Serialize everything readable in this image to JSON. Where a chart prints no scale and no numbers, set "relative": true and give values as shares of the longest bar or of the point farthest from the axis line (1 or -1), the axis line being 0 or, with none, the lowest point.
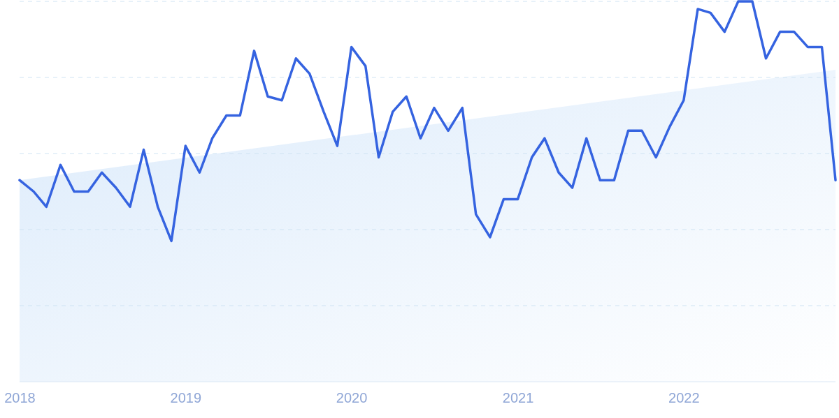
{
  "chart_data": {
    "type": "line",
    "relative": true,
    "tick_labels": "x",
    "x": [
      "2018-01",
      "2018-02",
      "2018-03",
      "2018-04",
      "2018-05",
      "2018-06",
      "2018-07",
      "2018-08",
      "2018-09",
      "2018-10",
      "2018-11",
      "2018-12",
      "2019-01",
      "2019-02",
      "2019-03",
      "2019-04",
      "2019-05",
      "2019-06",
      "2019-07",
      "2019-08",
      "2019-09",
      "2019-10",
      "2019-11",
      "2019-12",
      "2020-01",
      "2020-02",
      "2020-03",
      "2020-04",
      "2020-05",
      "2020-06",
      "2020-07",
      "2020-08",
      "2020-09",
      "2020-10",
      "2020-11",
      "2020-12",
      "2021-01",
      "2021-02",
      "2021-03",
      "2021-04",
      "2021-05",
      "2021-06",
      "2021-07",
      "2021-08",
      "2021-09",
      "2021-10",
      "2021-11",
      "2021-12",
      "2022-01",
      "2022-02",
      "2022-03",
      "2022-04",
      "2022-05",
      "2022-06",
      "2022-07",
      "2022-08",
      "2022-09",
      "2022-10",
      "2022-11",
      "2022-12"
    ],
    "xlim": [
      "2018-01",
      "2022-12"
    ],
    "xticks": [
      "2018",
      "2019",
      "2020",
      "2021",
      "2022"
    ],
    "series": [
      {
        "type": "area",
        "color": "#dcebfb",
        "x": [
          "2018-01",
          "2022-12"
        ],
        "values": [
          0.53,
          0.82
        ]
      },
      {
        "color": "#3563e0",
        "values": [
          0.53,
          0.5,
          0.46,
          0.57,
          0.5,
          0.5,
          0.55,
          0.51,
          0.46,
          0.61,
          0.46,
          0.37,
          0.62,
          0.55,
          0.64,
          0.7,
          0.7,
          0.87,
          0.75,
          0.74,
          0.85,
          0.81,
          0.71,
          0.62,
          0.88,
          0.83,
          0.59,
          0.71,
          0.75,
          0.64,
          0.72,
          0.66,
          0.72,
          0.44,
          0.38,
          0.48,
          0.48,
          0.59,
          0.64,
          0.55,
          0.51,
          0.64,
          0.53,
          0.53,
          0.66,
          0.66,
          0.59,
          0.67,
          0.74,
          0.98,
          0.97,
          0.92,
          1,
          1,
          0.85,
          0.92,
          0.92,
          0.88,
          0.88,
          0.53
        ]
      }
    ]
  }
}
